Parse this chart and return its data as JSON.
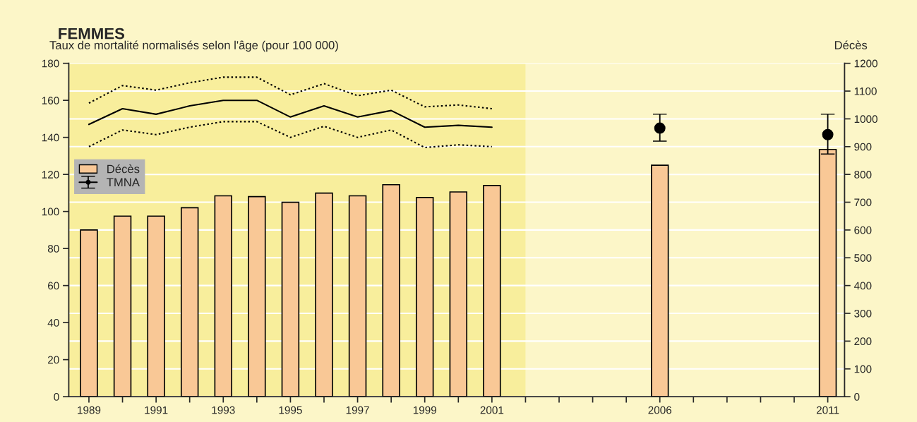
{
  "chart_data": {
    "type": "bar",
    "title": "FEMMES",
    "ylabel": "Taux de mortalité normalisés selon l'âge (pour 100 000)",
    "y2label": "Décès",
    "x": [
      1989,
      1990,
      1991,
      1992,
      1993,
      1994,
      1995,
      1996,
      1997,
      1998,
      1999,
      2000,
      2001,
      2006,
      2011
    ],
    "series": [
      {
        "name": "Décès",
        "axis": "y2",
        "color": "#f9c896",
        "values": [
          600,
          650,
          650,
          680,
          723,
          720,
          700,
          733,
          723,
          763,
          717,
          737,
          760,
          833,
          890
        ]
      },
      {
        "name": "TMNA",
        "type": "line",
        "color": "#000000",
        "line_style": "solid",
        "x": [
          1989,
          1990,
          1991,
          1992,
          1993,
          1994,
          1995,
          1996,
          1997,
          1998,
          1999,
          2000,
          2001
        ],
        "values": [
          147,
          155.5,
          152.5,
          157,
          160,
          160,
          151,
          157,
          151,
          154.5,
          145.5,
          146.5,
          145.5
        ]
      },
      {
        "type": "line",
        "color": "#000000",
        "line_style": "dotted",
        "x": [
          1989,
          1990,
          1991,
          1992,
          1993,
          1994,
          1995,
          1996,
          1997,
          1998,
          1999,
          2000,
          2001
        ],
        "values": [
          158.5,
          168,
          165.5,
          169.5,
          172.5,
          172.5,
          163,
          169,
          162.5,
          165.5,
          156.5,
          157.5,
          155.5
        ]
      },
      {
        "type": "line",
        "color": "#000000",
        "line_style": "dotted",
        "x": [
          1989,
          1990,
          1991,
          1992,
          1993,
          1994,
          1995,
          1996,
          1997,
          1998,
          1999,
          2000,
          2001
        ],
        "values": [
          135,
          144,
          141.5,
          145.5,
          148.5,
          148.5,
          140,
          146,
          140,
          144,
          134.5,
          136,
          135
        ]
      },
      {
        "type": "scatter",
        "color": "#000000",
        "marker": "circle",
        "x": [
          2006,
          2011
        ],
        "values": [
          145,
          141.5
        ],
        "errors": [
          [
            138,
            152.5
          ],
          [
            131,
            152.5
          ]
        ]
      }
    ],
    "xlim": [
      1988.4,
      2011.5
    ],
    "xticks": [
      1989,
      {
        "value": 1990,
        "label": null
      },
      1991,
      {
        "value": 1992,
        "label": null
      },
      1993,
      {
        "value": 1994,
        "label": null
      },
      1995,
      {
        "value": 1996,
        "label": null
      },
      1997,
      {
        "value": 1998,
        "label": null
      },
      1999,
      {
        "value": 2000,
        "label": null
      },
      2001,
      {
        "value": 2002,
        "label": null
      },
      {
        "value": 2003,
        "label": null
      },
      {
        "value": 2004,
        "label": null
      },
      {
        "value": 2005,
        "label": null
      },
      2006,
      {
        "value": 2007,
        "label": null
      },
      {
        "value": 2008,
        "label": null
      },
      {
        "value": 2009,
        "label": null
      },
      {
        "value": 2010,
        "label": null
      },
      2011
    ],
    "ylim": [
      0,
      180
    ],
    "yticks": [
      0,
      20,
      40,
      60,
      80,
      100,
      120,
      140,
      160,
      180
    ],
    "y2lim": [
      0,
      1200
    ],
    "y2ticks": [
      0,
      100,
      200,
      300,
      400,
      500,
      600,
      700,
      800,
      900,
      1000,
      1100,
      1200
    ],
    "bands": [
      {
        "axis": "x",
        "from": 1988.4,
        "to": 2002,
        "color": "#f8ee9c"
      }
    ],
    "grid": "y2",
    "legend": "left"
  }
}
